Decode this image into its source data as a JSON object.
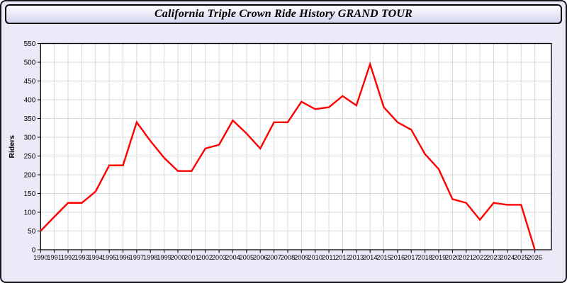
{
  "window": {
    "background_color": "#EAEAF8",
    "border_color": "#15151C"
  },
  "title_bar": {
    "title": "California Triple Crown Ride History GRAND TOUR"
  },
  "chart_data": {
    "type": "line",
    "title": "California Triple Crown Ride History GRAND TOUR",
    "xlabel": "",
    "ylabel": "Riders",
    "x": [
      1990,
      1991,
      1992,
      1993,
      1994,
      1995,
      1996,
      1997,
      1998,
      1999,
      2000,
      2001,
      2002,
      2003,
      2004,
      2005,
      2006,
      2007,
      2008,
      2009,
      2010,
      2011,
      2012,
      2013,
      2014,
      2015,
      2016,
      2017,
      2018,
      2019,
      2020,
      2021,
      2022,
      2023,
      2024,
      2025,
      2026
    ],
    "series": [
      {
        "name": "Riders",
        "values": [
          50,
          88,
          125,
          125,
          155,
          225,
          225,
          340,
          290,
          245,
          210,
          210,
          270,
          280,
          345,
          310,
          270,
          340,
          340,
          395,
          375,
          380,
          410,
          385,
          495,
          380,
          340,
          320,
          255,
          215,
          135,
          125,
          80,
          125,
          120,
          120,
          0
        ]
      }
    ],
    "ylim": [
      0,
      550
    ],
    "ytick_step": 50,
    "grid": true,
    "legend": "none",
    "line_color": "#FF0000",
    "plot_background": "#FFFFFF",
    "grid_color": "#D9D9D9",
    "axis_color": "#000000",
    "tick_label_color": "#000000"
  }
}
